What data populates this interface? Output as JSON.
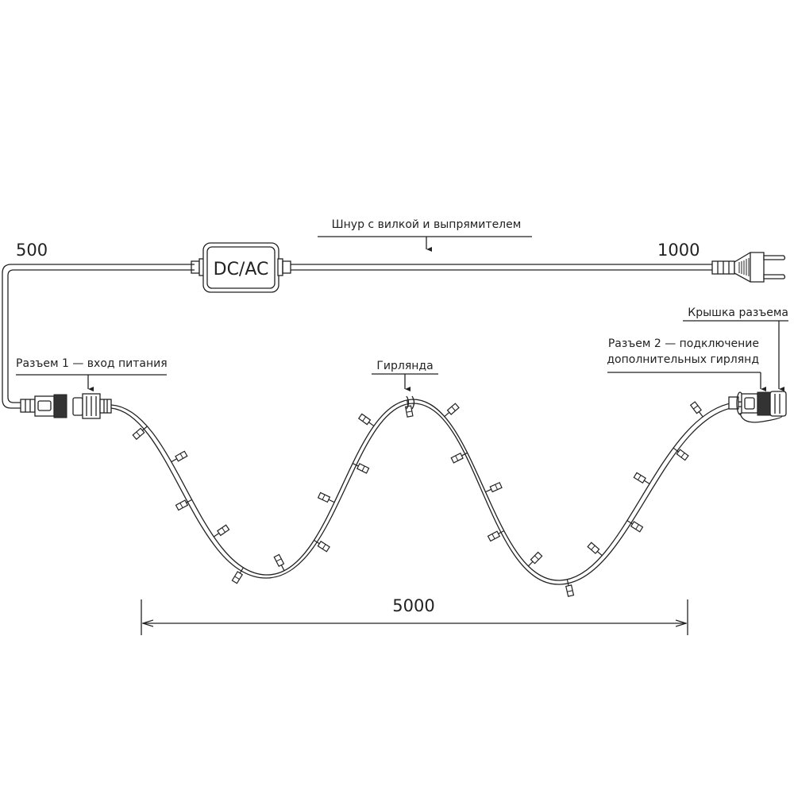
{
  "labels": {
    "cord": "Шнур с вилкой и выпрямителем",
    "left_length": "500",
    "right_length": "1000",
    "converter": "DC/AC",
    "connector1": "Разъем 1 — вход питания",
    "garland": "Гирлянда",
    "cap": "Крышка разъема",
    "connector2_line1": "Разъем 2 — подключение",
    "connector2_line2": "дополнительных гирлянд",
    "garland_length": "5000"
  },
  "colors": {
    "line": "#222222",
    "background": "#ffffff"
  }
}
